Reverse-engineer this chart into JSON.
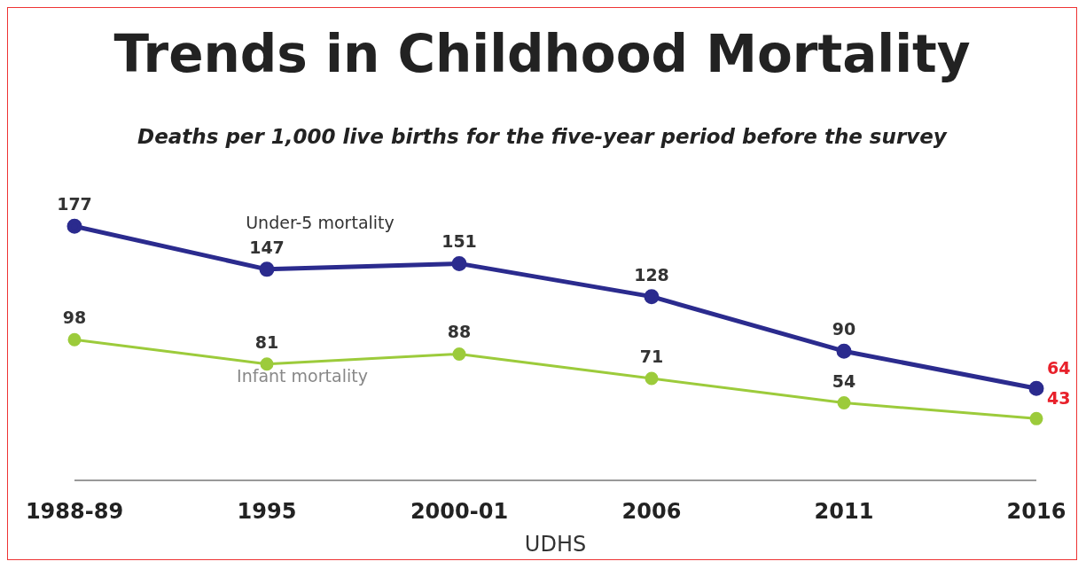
{
  "chart_data": {
    "type": "line",
    "title": "Trends in Childhood Mortality",
    "subtitle": "Deaths per 1,000 live births for the five-year period before the survey",
    "xlabel": "UDHS",
    "categories": [
      "1988-89",
      "1995",
      "2000-01",
      "2006",
      "2011",
      "2016"
    ],
    "series": [
      {
        "name": "Under-5 mortality",
        "color": "#2b2b8e",
        "values": [
          177,
          147,
          151,
          128,
          90,
          64
        ]
      },
      {
        "name": "Infant mortality",
        "color": "#9ccb3b",
        "values": [
          98,
          81,
          88,
          71,
          54,
          43
        ]
      }
    ],
    "tick_labels": "x",
    "data_labels": true,
    "legend": false,
    "grid": false,
    "marker": "circle",
    "line_style": "solid"
  }
}
